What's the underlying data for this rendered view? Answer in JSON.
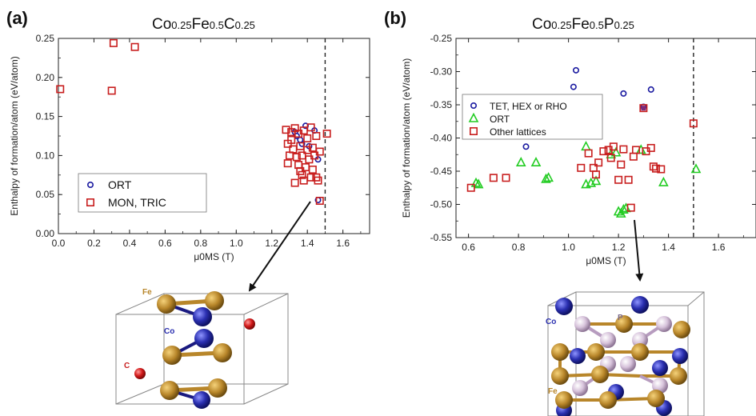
{
  "panels": [
    {
      "letter": "(a)",
      "title_parts": [
        [
          "Co",
          "0.25"
        ],
        [
          "Fe",
          "0.5"
        ],
        [
          "C",
          "0.25"
        ]
      ],
      "structure_labels": {
        "fe": "Fe",
        "co": "Co",
        "c": "C"
      }
    },
    {
      "letter": "(b)",
      "title_parts": [
        [
          "Co",
          "0.25"
        ],
        [
          "Fe",
          "0.5"
        ],
        [
          "P",
          "0.25"
        ]
      ],
      "structure_labels": {
        "co": "Co",
        "p": "P",
        "fe": "Fe"
      }
    }
  ],
  "colors": {
    "blue": "#1a1aa0",
    "red": "#c81e1e",
    "green": "#22cc22",
    "purple": "#7a2a7a"
  },
  "chart_data": [
    {
      "type": "scatter",
      "title": "Co0.25Fe0.5C0.25",
      "xlabel": "μ0MS (T)",
      "ylabel": "Enthalpy of formation/atom (eV/atom)",
      "xlim": [
        0.0,
        1.75
      ],
      "ylim": [
        0.0,
        0.25
      ],
      "xticks": [
        "0.0",
        "0.2",
        "0.4",
        "0.6",
        "0.8",
        "1.0",
        "1.2",
        "1.4",
        "1.6"
      ],
      "yticks": [
        "0.00",
        "0.05",
        "0.10",
        "0.15",
        "0.20",
        "0.25"
      ],
      "vline_x": 1.5,
      "legend_position": "lower-left",
      "series": [
        {
          "name": "ORT",
          "marker": "circle",
          "color": "#1a1aa0",
          "points": [
            [
              1.33,
              0.13
            ],
            [
              1.34,
              0.125
            ],
            [
              1.37,
              0.115
            ],
            [
              1.39,
              0.138
            ],
            [
              1.41,
              0.112
            ],
            [
              1.44,
              0.132
            ],
            [
              1.46,
              0.095
            ],
            [
              1.46,
              0.043
            ],
            [
              1.36,
              0.12
            ]
          ]
        },
        {
          "name": "MON, TRIC",
          "marker": "square",
          "color": "#c81e1e",
          "points": [
            [
              0.01,
              0.185
            ],
            [
              0.3,
              0.183
            ],
            [
              0.31,
              0.244
            ],
            [
              0.43,
              0.239
            ],
            [
              1.28,
              0.133
            ],
            [
              1.29,
              0.115
            ],
            [
              1.29,
              0.09
            ],
            [
              1.3,
              0.1
            ],
            [
              1.31,
              0.12
            ],
            [
              1.32,
              0.108
            ],
            [
              1.33,
              0.135
            ],
            [
              1.33,
              0.065
            ],
            [
              1.34,
              0.098
            ],
            [
              1.35,
              0.128
            ],
            [
              1.35,
              0.088
            ],
            [
              1.36,
              0.112
            ],
            [
              1.37,
              0.075
            ],
            [
              1.37,
              0.1
            ],
            [
              1.38,
              0.132
            ],
            [
              1.38,
              0.068
            ],
            [
              1.39,
              0.085
            ],
            [
              1.4,
              0.107
            ],
            [
              1.4,
              0.122
            ],
            [
              1.41,
              0.095
            ],
            [
              1.42,
              0.072
            ],
            [
              1.42,
              0.136
            ],
            [
              1.43,
              0.11
            ],
            [
              1.43,
              0.082
            ],
            [
              1.44,
              0.1
            ],
            [
              1.45,
              0.125
            ],
            [
              1.45,
              0.072
            ],
            [
              1.46,
              0.068
            ],
            [
              1.47,
              0.105
            ],
            [
              1.47,
              0.042
            ],
            [
              1.51,
              0.128
            ],
            [
              1.31,
              0.13
            ],
            [
              1.36,
              0.08
            ]
          ]
        }
      ]
    },
    {
      "type": "scatter",
      "title": "Co0.25Fe0.5P0.25",
      "xlabel": "μ0MS (T)",
      "ylabel": "Enthalpy of formation/atom (eV/atom)",
      "xlim": [
        0.55,
        1.75
      ],
      "ylim": [
        -0.55,
        -0.25
      ],
      "xticks": [
        "0.6",
        "0.8",
        "1.0",
        "1.2",
        "1.4",
        "1.6"
      ],
      "yticks": [
        "-0.25",
        "-0.30",
        "-0.35",
        "-0.40",
        "-0.45",
        "-0.50",
        "-0.55"
      ],
      "vline_x": 1.5,
      "legend_position": "upper-left",
      "series": [
        {
          "name": "TET, HEX or RHO",
          "marker": "circle",
          "color": "#1a1aa0",
          "points": [
            [
              0.83,
              -0.413
            ],
            [
              1.02,
              -0.323
            ],
            [
              1.03,
              -0.298
            ],
            [
              1.22,
              -0.333
            ],
            [
              1.3,
              -0.353
            ],
            [
              1.33,
              -0.327
            ]
          ]
        },
        {
          "name": "ORT",
          "marker": "triangle",
          "color": "#22cc22",
          "points": [
            [
              0.63,
              -0.468
            ],
            [
              0.64,
              -0.47
            ],
            [
              0.81,
              -0.437
            ],
            [
              0.87,
              -0.437
            ],
            [
              0.91,
              -0.462
            ],
            [
              0.92,
              -0.46
            ],
            [
              1.07,
              -0.413
            ],
            [
              1.07,
              -0.47
            ],
            [
              1.09,
              -0.468
            ],
            [
              1.11,
              -0.465
            ],
            [
              1.17,
              -0.425
            ],
            [
              1.19,
              -0.422
            ],
            [
              1.2,
              -0.511
            ],
            [
              1.21,
              -0.514
            ],
            [
              1.22,
              -0.508
            ],
            [
              1.23,
              -0.506
            ],
            [
              1.29,
              -0.418
            ],
            [
              1.38,
              -0.467
            ],
            [
              1.51,
              -0.447
            ]
          ]
        },
        {
          "name": "Other lattices",
          "marker": "square",
          "color": "#c81e1e",
          "points": [
            [
              0.61,
              -0.475
            ],
            [
              0.7,
              -0.46
            ],
            [
              0.75,
              -0.46
            ],
            [
              1.05,
              -0.445
            ],
            [
              1.08,
              -0.423
            ],
            [
              1.1,
              -0.445
            ],
            [
              1.11,
              -0.455
            ],
            [
              1.12,
              -0.437
            ],
            [
              1.14,
              -0.42
            ],
            [
              1.16,
              -0.418
            ],
            [
              1.17,
              -0.43
            ],
            [
              1.18,
              -0.413
            ],
            [
              1.2,
              -0.463
            ],
            [
              1.21,
              -0.44
            ],
            [
              1.22,
              -0.417
            ],
            [
              1.24,
              -0.463
            ],
            [
              1.25,
              -0.505
            ],
            [
              1.26,
              -0.428
            ],
            [
              1.27,
              -0.418
            ],
            [
              1.3,
              -0.355
            ],
            [
              1.31,
              -0.42
            ],
            [
              1.33,
              -0.415
            ],
            [
              1.34,
              -0.443
            ],
            [
              1.35,
              -0.446
            ],
            [
              1.37,
              -0.447
            ],
            [
              1.5,
              -0.378
            ]
          ]
        }
      ]
    }
  ]
}
